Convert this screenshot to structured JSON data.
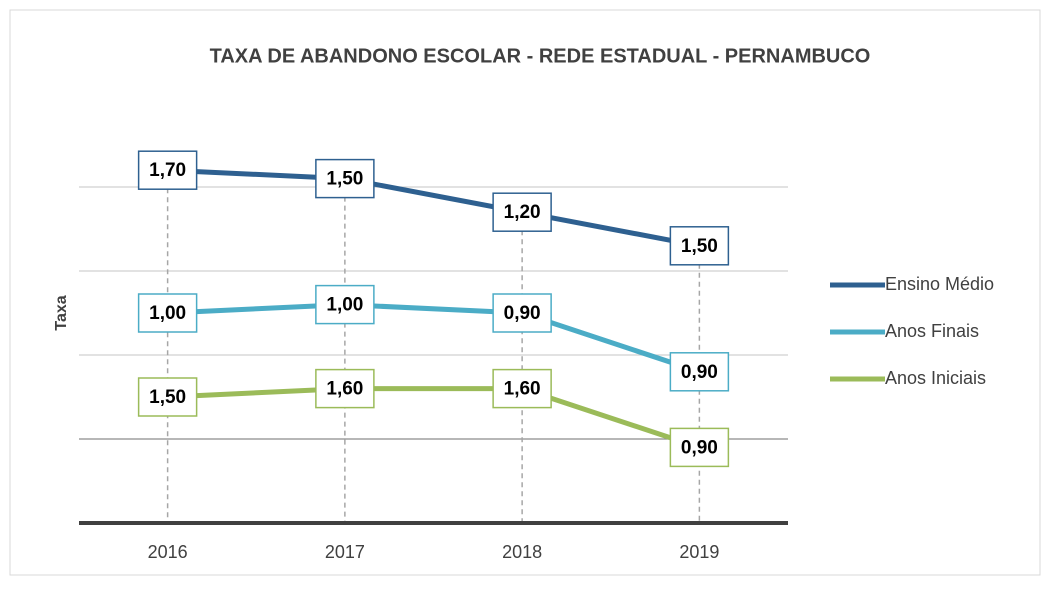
{
  "chart_data": {
    "type": "line",
    "stacked": true,
    "title": "TAXA DE ABANDONO ESCOLAR - REDE ESTADUAL - PERNAMBUCO",
    "y_label": "Taxa",
    "categories": [
      "2016",
      "2017",
      "2018",
      "2019"
    ],
    "series": [
      {
        "name": "Anos Iniciais",
        "color": "#9bbb59",
        "values": [
          1.5,
          1.6,
          1.6,
          0.9
        ],
        "value_labels": [
          "1,50",
          "1,60",
          "1,60",
          "0,90"
        ]
      },
      {
        "name": "Anos Finais",
        "color": "#4bacc6",
        "values": [
          1.0,
          1.0,
          0.9,
          0.9
        ],
        "value_labels": [
          "1,00",
          "1,00",
          "0,90",
          "0,90"
        ]
      },
      {
        "name": "Ensino Médio",
        "color": "#2e6090",
        "values": [
          1.7,
          1.5,
          1.2,
          1.5
        ],
        "value_labels": [
          "1,70",
          "1,50",
          "1,20",
          "1,50"
        ]
      }
    ],
    "ylim": [
      0,
      5
    ],
    "yticks": [
      1,
      2,
      3,
      4
    ],
    "grid": true,
    "drop_lines": true,
    "legend": "right"
  }
}
